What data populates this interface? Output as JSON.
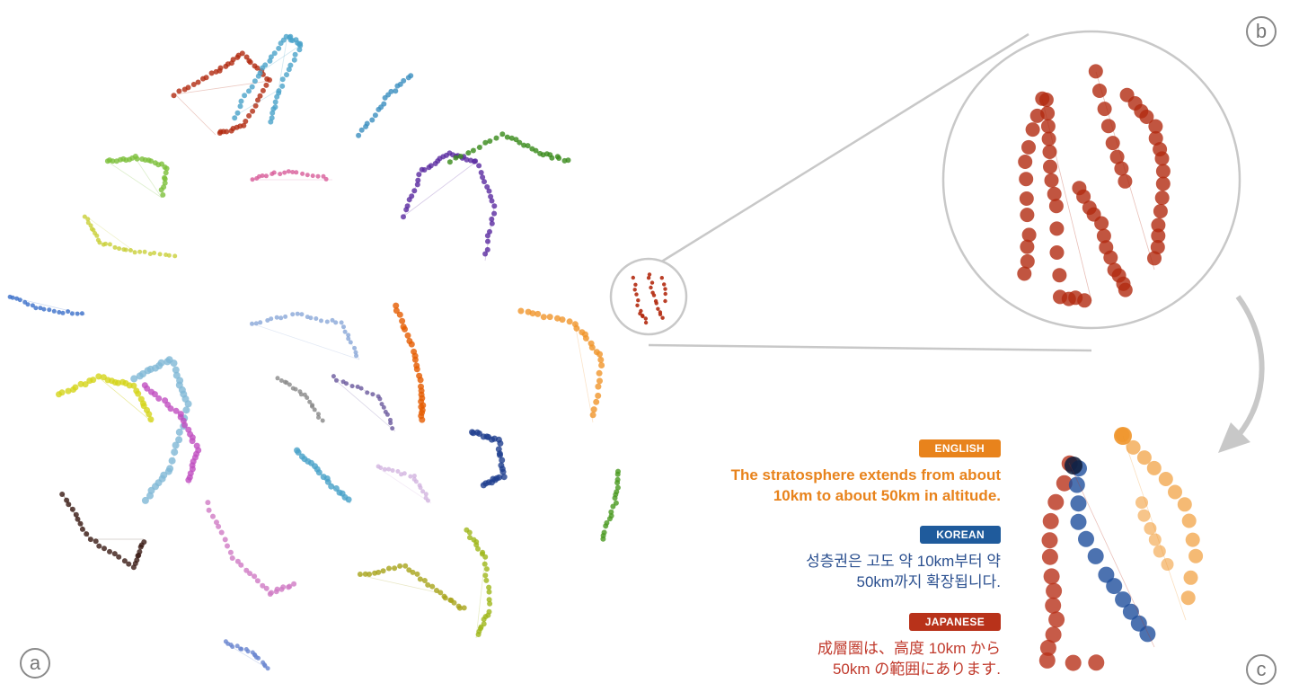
{
  "panels": {
    "a": "a",
    "b": "b",
    "c": "c"
  },
  "legend": {
    "english": {
      "badge": "ENGLISH",
      "line1": "The stratosphere extends from about",
      "line2": "10km to about 50km in altitude."
    },
    "korean": {
      "badge": "KOREAN",
      "line1": "성층권은 고도 약 10km부터 약",
      "line2": "50km까지 확장됩니다."
    },
    "japanese": {
      "badge": "JAPANESE",
      "line1": "成層圏は、高度 10km から",
      "line2": "50km の範囲にあります."
    }
  },
  "colors": {
    "english": "#e8831c",
    "korean": "#1f5b9c",
    "japanese": "#b8321a",
    "outline": "#c8c8c8"
  }
}
